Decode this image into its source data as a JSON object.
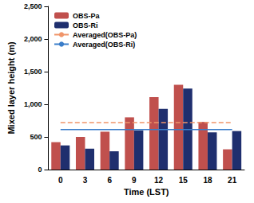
{
  "chart_data": {
    "type": "bar",
    "x_label": "Time (LST)",
    "y_label": "Mixed layer height (m)",
    "categories": [
      "0",
      "3",
      "6",
      "9",
      "12",
      "15",
      "18",
      "21"
    ],
    "series": [
      {
        "name": "OBS-Pa",
        "type": "bar",
        "color": "#c0504d",
        "values": [
          420,
          500,
          580,
          800,
          1110,
          1300,
          730,
          310
        ]
      },
      {
        "name": "OBS-Ri",
        "type": "bar",
        "color": "#1f2f6e",
        "values": [
          370,
          320,
          280,
          600,
          930,
          1240,
          570,
          590
        ]
      },
      {
        "name": "Averaged(OBS-Pa)",
        "type": "line",
        "line_style": "dashed",
        "color": "#f0956a",
        "values": [
          719,
          719,
          719,
          719,
          719,
          719,
          719,
          719
        ]
      },
      {
        "name": "Averaged(OBS-Ri)",
        "type": "line",
        "line_style": "solid",
        "color": "#3a7dc9",
        "values": [
          612,
          612,
          612,
          612,
          612,
          612,
          612,
          612
        ]
      }
    ],
    "ylim": [
      0,
      2500
    ],
    "yticks": [
      0,
      500,
      {
        "value": 1000,
        "label": "1,000"
      },
      {
        "value": 1500,
        "label": "1,500"
      },
      {
        "value": 2000,
        "label": "2,000"
      },
      {
        "value": 2500,
        "label": "2,500"
      }
    ],
    "grid": false,
    "legend": "upper left"
  }
}
